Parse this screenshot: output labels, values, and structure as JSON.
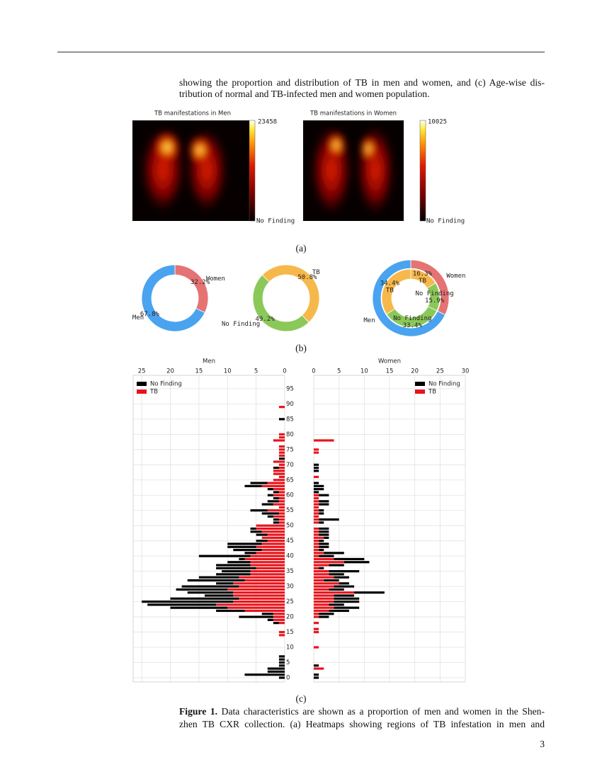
{
  "text": {
    "top_lines": [
      "showing the proportion and distribution of TB in men and women, and (c) Age-wise dis-",
      "tribution of normal and TB-infected men and women population."
    ],
    "caption": {
      "label": "Figure 1.",
      "lines": [
        " Data characteristics are shown as a proportion of men and women in the Shen-",
        "zhen TB CXR collection. (a) Heatmaps showing regions of TB infestation in men and"
      ]
    },
    "page_number": "3"
  },
  "panel_labels": [
    "(a)",
    "(b)",
    "(c)"
  ],
  "heatmaps": [
    {
      "title": "TB manifestations in Men",
      "vmax": 23458,
      "vmin_label": "No Finding"
    },
    {
      "title": "TB manifestations in Women",
      "vmax": 10025,
      "vmin_label": "No Finding"
    }
  ],
  "chart_data": [
    {
      "type": "donut",
      "start_angle": 0,
      "categories": [
        "Women",
        "Men"
      ],
      "values": [
        32.2,
        67.8
      ],
      "value_labels": [
        "32.2%",
        "67.8%"
      ],
      "colors": [
        "#e57373",
        "#4aa3ef"
      ]
    },
    {
      "type": "donut",
      "start_angle": -46,
      "categories": [
        "TB",
        "No Finding"
      ],
      "values": [
        50.8,
        49.2
      ],
      "value_labels": [
        "50.8%",
        "49.2%"
      ],
      "colors": [
        "#f7b84b",
        "#8bc85a"
      ]
    },
    {
      "type": "nested_donut",
      "start_angle": 0,
      "rings": [
        {
          "categories": [
            "Women",
            "Men"
          ],
          "values": [
            32.2,
            67.8
          ],
          "colors": [
            "#e57373",
            "#4aa3ef"
          ]
        },
        {
          "categories": [
            "TB",
            "No Finding",
            "No Finding",
            "TB"
          ],
          "values": [
            16.3,
            15.9,
            33.4,
            34.4
          ],
          "value_labels": [
            "16.3%",
            "15.9%",
            "33.4%",
            "34.4%"
          ],
          "colors": [
            "#f7b84b",
            "#8bc85a",
            "#8bc85a",
            "#f7b84b"
          ]
        }
      ]
    },
    {
      "type": "pyramid",
      "grid": true,
      "panels": [
        {
          "title": "Men",
          "direction": "left",
          "legend": "upper left",
          "xlim": [
            0,
            26.5
          ],
          "xticks": [
            25,
            20,
            15,
            10,
            5,
            0
          ]
        },
        {
          "title": "Women",
          "direction": "right",
          "legend": "upper right",
          "xlim": [
            0,
            30
          ],
          "xticks": [
            0,
            5,
            10,
            15,
            20,
            25,
            30
          ]
        }
      ],
      "ylim": [
        -1.4,
        99.4
      ],
      "yticks": [
        0,
        5,
        10,
        15,
        20,
        25,
        30,
        35,
        40,
        45,
        50,
        55,
        60,
        65,
        70,
        75,
        80,
        85,
        90,
        95
      ],
      "ages": [
        0,
        1,
        2,
        3,
        4,
        5,
        6,
        7,
        8,
        9,
        10,
        11,
        12,
        13,
        14,
        15,
        16,
        17,
        18,
        19,
        20,
        21,
        22,
        23,
        24,
        25,
        26,
        27,
        28,
        29,
        30,
        31,
        32,
        33,
        34,
        35,
        36,
        37,
        38,
        39,
        40,
        41,
        42,
        43,
        44,
        45,
        46,
        47,
        48,
        49,
        50,
        51,
        52,
        53,
        54,
        55,
        56,
        57,
        58,
        59,
        60,
        61,
        62,
        63,
        64,
        65,
        66,
        67,
        68,
        69,
        70,
        71,
        72,
        73,
        74,
        75,
        76,
        77,
        78,
        79,
        80,
        81,
        82,
        83,
        84,
        85,
        86,
        87,
        88,
        89,
        90
      ],
      "series": [
        {
          "name": "No Finding",
          "color": "#000000",
          "men": [
            1,
            7,
            3,
            3,
            1,
            1,
            1,
            1,
            0,
            0,
            0,
            0,
            0,
            0,
            0,
            0,
            0,
            0,
            1,
            1,
            6,
            2,
            5,
            10,
            12,
            16,
            12,
            5,
            8,
            9,
            10,
            3,
            10,
            7,
            6,
            5,
            7,
            6,
            4,
            1,
            9,
            2,
            5,
            5,
            6,
            2,
            0,
            2,
            2,
            1,
            0,
            1,
            1,
            1,
            3,
            3,
            0,
            2,
            2,
            1,
            1,
            1,
            1,
            3,
            3,
            0,
            0,
            0,
            0,
            1,
            0,
            0,
            1,
            0,
            0,
            0,
            0,
            0,
            0,
            0,
            0,
            0,
            0,
            0,
            0,
            1,
            0,
            0,
            0,
            0,
            0
          ],
          "women": [
            1,
            1,
            0,
            0,
            1,
            0,
            0,
            0,
            0,
            0,
            0,
            0,
            0,
            0,
            0,
            0,
            0,
            0,
            0,
            0,
            2,
            3,
            4,
            5,
            3,
            5,
            5,
            4,
            6,
            3,
            4,
            2,
            3,
            3,
            3,
            6,
            1,
            3,
            5,
            6,
            3,
            4,
            1,
            2,
            2,
            1,
            1,
            2,
            2,
            2,
            0,
            1,
            4,
            0,
            1,
            1,
            0,
            2,
            2,
            0,
            2,
            1,
            2,
            2,
            1,
            0,
            0,
            0,
            1,
            1,
            1,
            0,
            0,
            0,
            0,
            0,
            0,
            0,
            0,
            0,
            0,
            0,
            0,
            0,
            0,
            0,
            0,
            0,
            0,
            0,
            0
          ]
        },
        {
          "name": "TB",
          "color": "#e8141c",
          "men": [
            0,
            0,
            0,
            0,
            0,
            0,
            0,
            0,
            0,
            0,
            0,
            0,
            0,
            0,
            1,
            1,
            0,
            0,
            1,
            2,
            2,
            2,
            7,
            10,
            12,
            9,
            8,
            9,
            9,
            10,
            8,
            9,
            7,
            8,
            6,
            6,
            5,
            6,
            6,
            7,
            6,
            5,
            4,
            5,
            4,
            3,
            4,
            3,
            4,
            5,
            5,
            1,
            1,
            2,
            1,
            3,
            1,
            2,
            1,
            1,
            2,
            1,
            2,
            4,
            3,
            2,
            1,
            2,
            2,
            1,
            1,
            2,
            0,
            1,
            1,
            1,
            1,
            0,
            2,
            1,
            1,
            0,
            0,
            0,
            0,
            0,
            0,
            0,
            0,
            1,
            0
          ],
          "women": [
            0,
            0,
            0,
            2,
            0,
            0,
            0,
            0,
            0,
            0,
            1,
            0,
            0,
            0,
            0,
            1,
            1,
            0,
            1,
            0,
            1,
            1,
            3,
            4,
            3,
            4,
            4,
            4,
            8,
            3,
            4,
            5,
            2,
            4,
            3,
            3,
            1,
            3,
            6,
            4,
            1,
            2,
            1,
            1,
            1,
            1,
            2,
            1,
            1,
            1,
            0,
            1,
            1,
            1,
            1,
            1,
            1,
            1,
            1,
            1,
            1,
            0,
            0,
            0,
            0,
            0,
            1,
            0,
            0,
            0,
            0,
            0,
            0,
            0,
            1,
            1,
            0,
            0,
            4,
            0,
            0,
            0,
            0,
            0,
            0,
            0,
            0,
            0,
            0,
            0,
            0
          ]
        }
      ]
    }
  ]
}
